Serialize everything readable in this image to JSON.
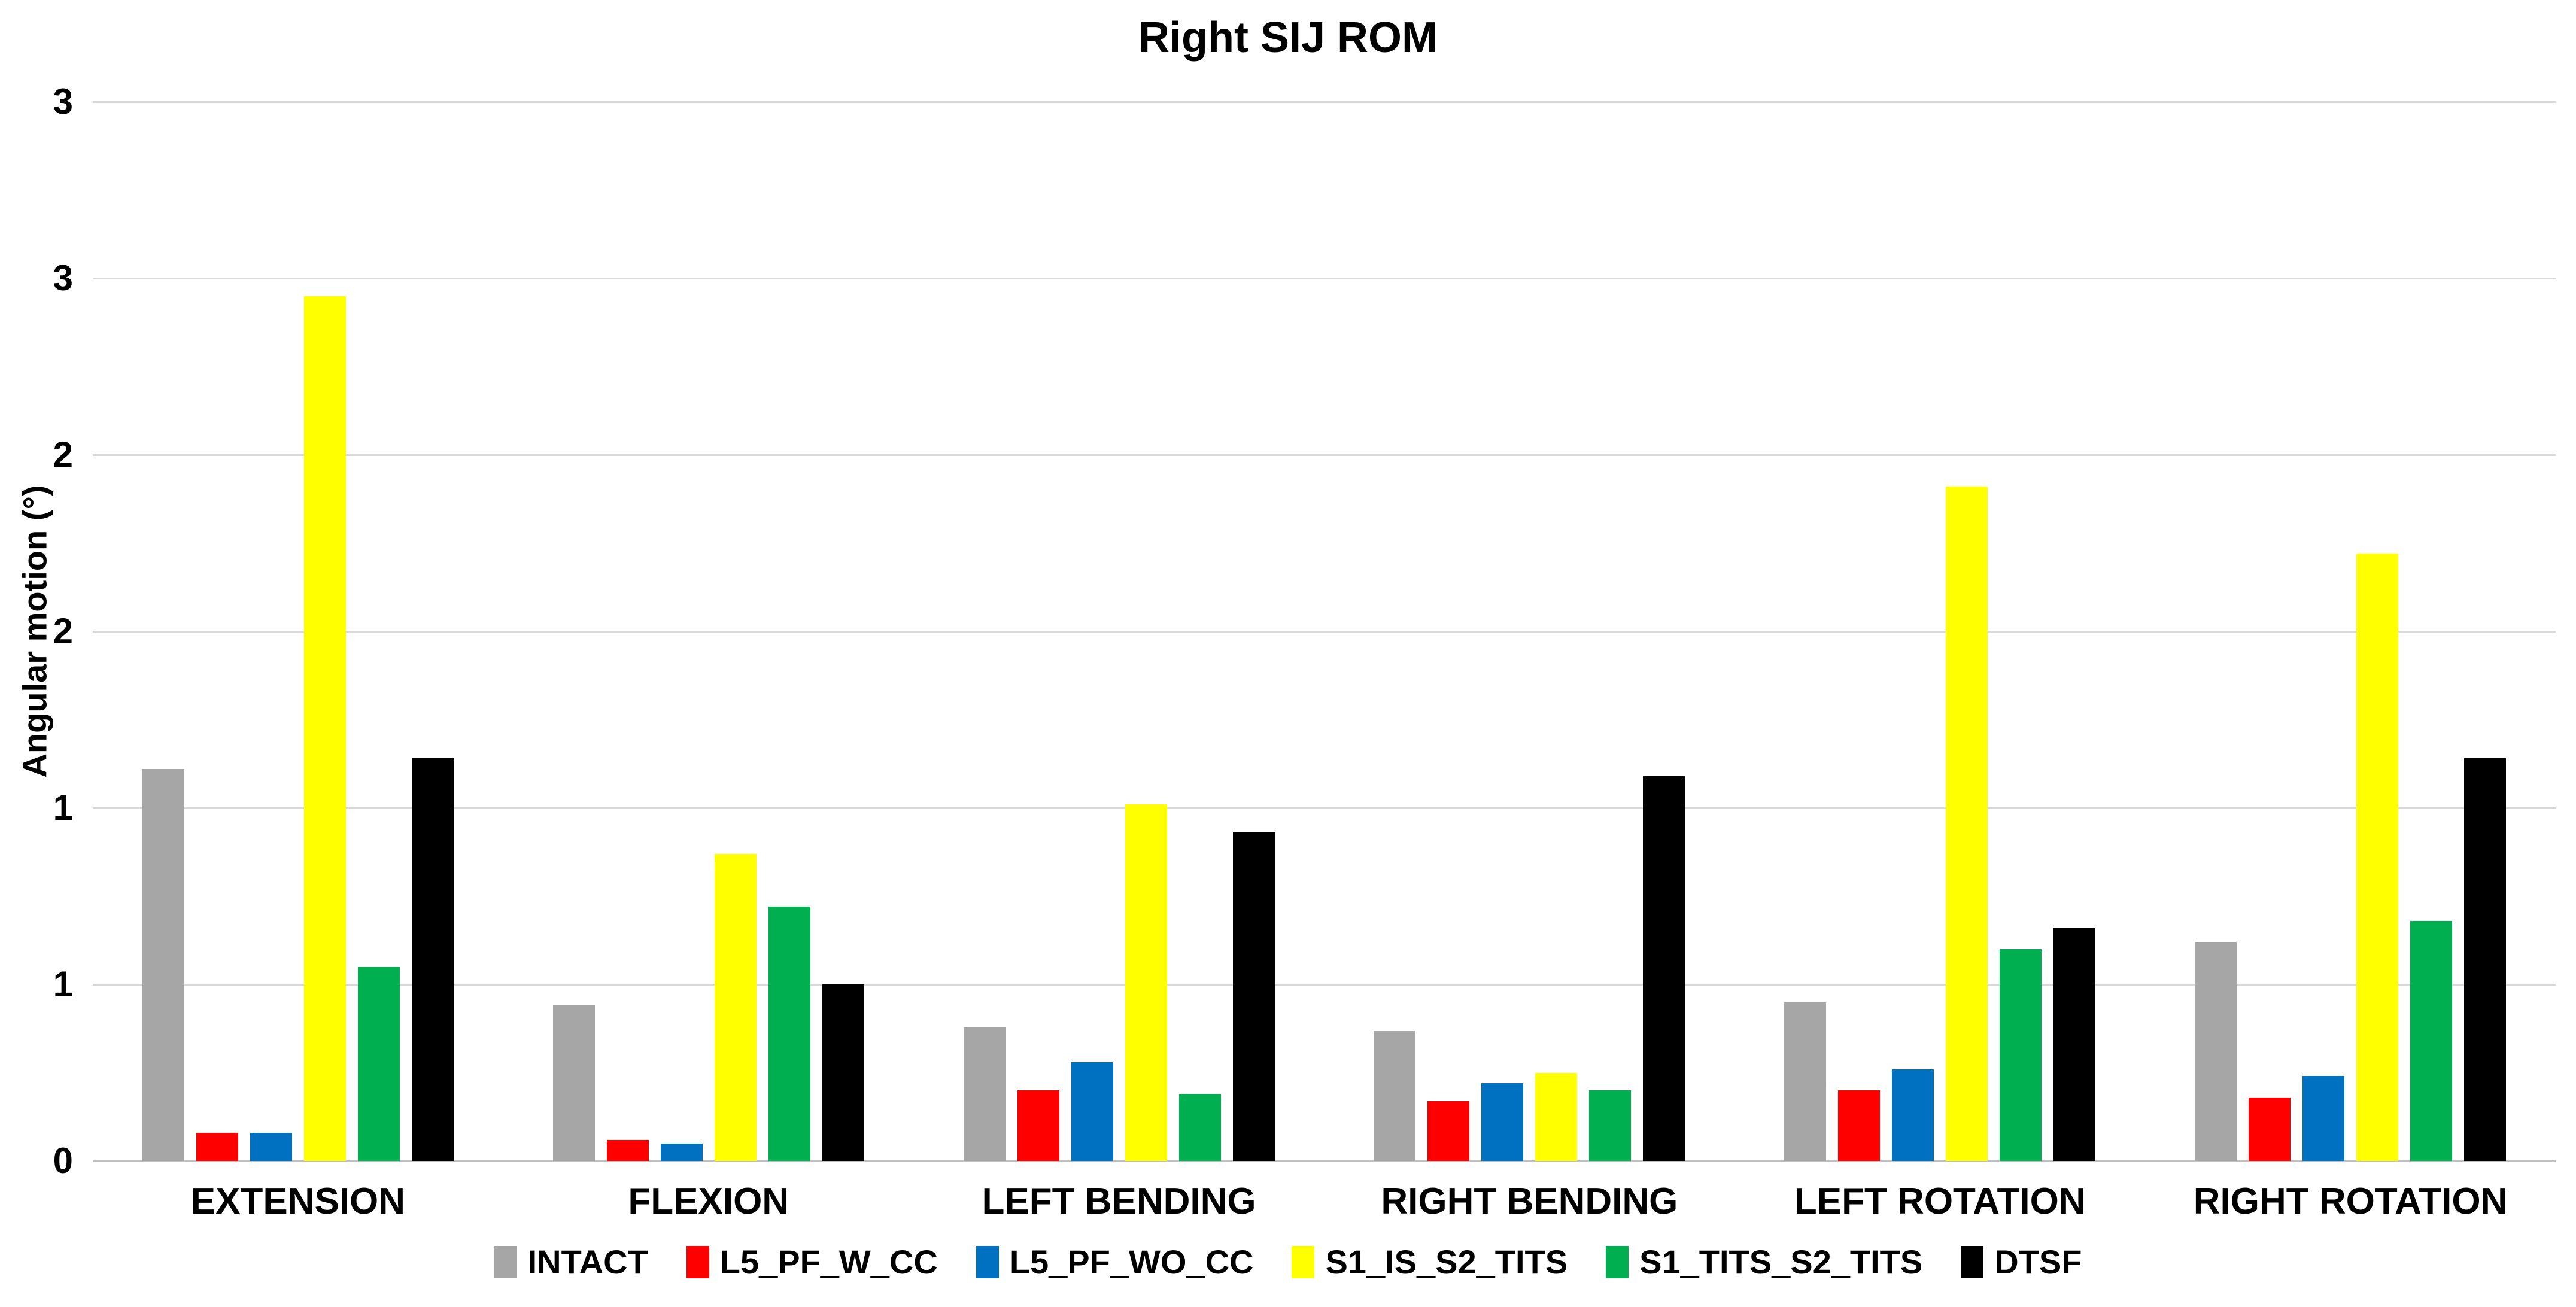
{
  "chart_title": "Right SIJ ROM",
  "colors": {
    "gridline": "#d9d9d9",
    "axis_line": "#bfbfbf",
    "text": "#000000",
    "background": "#ffffff"
  },
  "chart_data": {
    "type": "bar",
    "title": "Right SIJ ROM",
    "xlabel": "",
    "ylabel": "Angular motion (°)",
    "ylim": [
      0,
      3
    ],
    "ytick_step": 0.5,
    "grid": true,
    "legend_position": "bottom",
    "yticks": [
      {
        "value": 0,
        "label": "0"
      },
      {
        "value": 0.5,
        "label": "1"
      },
      {
        "value": 1,
        "label": "1"
      },
      {
        "value": 1.5,
        "label": "2"
      },
      {
        "value": 2,
        "label": "2"
      },
      {
        "value": 2.5,
        "label": "3"
      },
      {
        "value": 3,
        "label": "3"
      }
    ],
    "categories": [
      "EXTENSION",
      "FLEXION",
      "LEFT BENDING",
      "RIGHT BENDING",
      "LEFT ROTATION",
      "RIGHT ROTATION"
    ],
    "series": [
      {
        "name": "INTACT",
        "color": "#a6a6a6",
        "values": [
          1.11,
          0.44,
          0.38,
          0.37,
          0.45,
          0.62
        ]
      },
      {
        "name": "L5_PF_W_CC",
        "color": "#ff0000",
        "values": [
          0.08,
          0.06,
          0.2,
          0.17,
          0.2,
          0.18
        ]
      },
      {
        "name": "L5_PF_WO_CC",
        "color": "#0070c0",
        "values": [
          0.08,
          0.05,
          0.28,
          0.22,
          0.26,
          0.24
        ]
      },
      {
        "name": "S1_IS_S2_TITS",
        "color": "#ffff00",
        "values": [
          2.45,
          0.87,
          1.01,
          0.25,
          1.91,
          1.72
        ]
      },
      {
        "name": "S1_TITS_S2_TITS",
        "color": "#00b050",
        "values": [
          0.55,
          0.72,
          0.19,
          0.2,
          0.6,
          0.68
        ]
      },
      {
        "name": "DTSF",
        "color": "#000000",
        "values": [
          1.14,
          0.5,
          0.93,
          1.09,
          0.66,
          1.14
        ]
      }
    ]
  }
}
